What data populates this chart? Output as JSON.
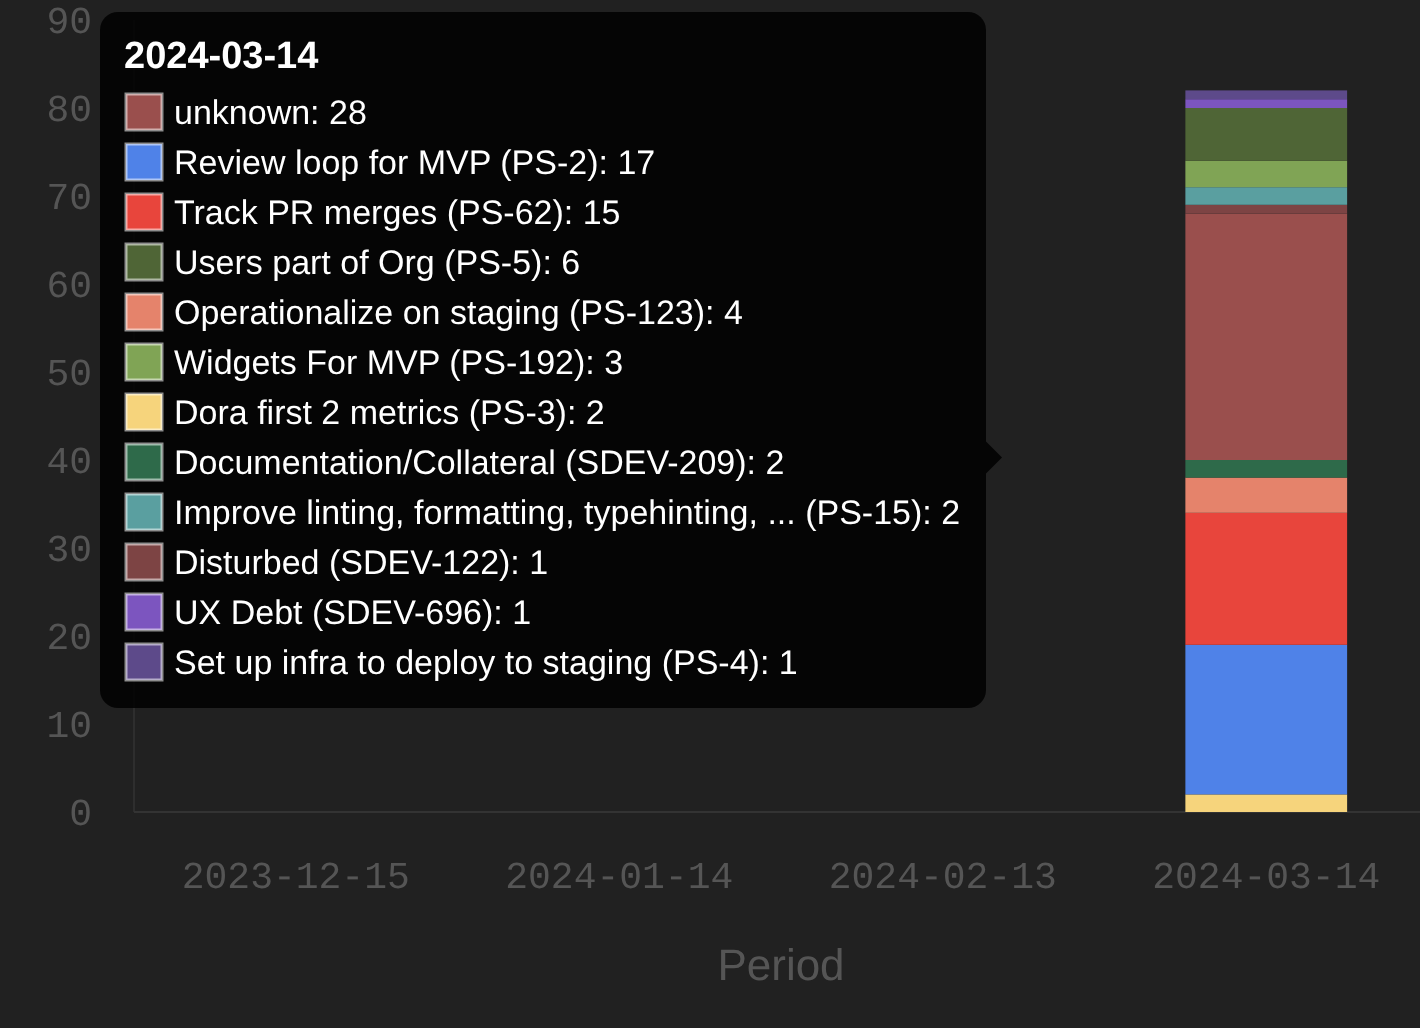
{
  "chart_data": {
    "type": "bar",
    "stacked": true,
    "categories": [
      "2023-12-15",
      "2024-01-14",
      "2024-02-13",
      "2024-03-14"
    ],
    "xlabel": "Period",
    "ylim": [
      0,
      90
    ],
    "yticks": [
      0,
      10,
      20,
      30,
      40,
      50,
      60,
      70,
      80,
      90
    ],
    "legend": "top left",
    "legend_title": "2024-03-14",
    "series": [
      {
        "name": "Dora first 2 metrics (PS-3): 2",
        "color": "#f6d47c",
        "values": [
          null,
          null,
          null,
          2
        ]
      },
      {
        "name": "Review loop for MVP (PS-2): 17",
        "color": "#4f82e8",
        "values": [
          null,
          null,
          null,
          17
        ]
      },
      {
        "name": "Track PR merges (PS-62): 15",
        "color": "#e8453c",
        "values": [
          null,
          null,
          null,
          15
        ]
      },
      {
        "name": "Operationalize on staging (PS-123): 4",
        "color": "#e5836b",
        "values": [
          null,
          null,
          null,
          4
        ]
      },
      {
        "name": "Documentation/Collateral (SDEV-209): 2",
        "color": "#2e6a4a",
        "values": [
          null,
          null,
          null,
          2
        ]
      },
      {
        "name": "unknown: 28",
        "color": "#9a4f4d",
        "values": [
          null,
          null,
          null,
          28
        ]
      },
      {
        "name": "Disturbed (SDEV-122): 1",
        "color": "#7d4444",
        "values": [
          null,
          null,
          null,
          1
        ]
      },
      {
        "name": "Improve linting, formatting, typehinting, ... (PS-15): 2",
        "color": "#5a9fa0",
        "values": [
          null,
          null,
          null,
          2
        ]
      },
      {
        "name": "Widgets For MVP (PS-192): 3",
        "color": "#80a455",
        "values": [
          null,
          null,
          null,
          3
        ]
      },
      {
        "name": "Users part of Org (PS-5): 6",
        "color": "#4f6536",
        "values": [
          null,
          null,
          null,
          6
        ]
      },
      {
        "name": "UX Debt (SDEV-696): 1",
        "color": "#7c55bf",
        "values": [
          null,
          null,
          null,
          1
        ]
      },
      {
        "name": "Set up infra to deploy to staging (PS-4): 1",
        "color": "#5d4a8a",
        "values": [
          null,
          null,
          null,
          1
        ]
      }
    ]
  }
}
